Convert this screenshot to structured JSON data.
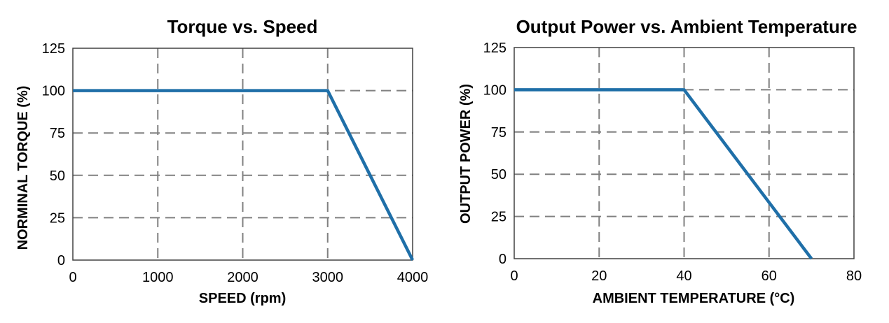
{
  "chart_data": [
    {
      "type": "line",
      "title": "Torque vs. Speed",
      "xlabel": "SPEED (rpm)",
      "ylabel": "NORMINAL TORQUE (%)",
      "xlim": [
        0,
        4000
      ],
      "ylim": [
        0,
        125
      ],
      "xticks": [
        "0",
        "1000",
        "2000",
        "3000",
        "4000"
      ],
      "yticks": [
        "0",
        "25",
        "50",
        "75",
        "100",
        "125"
      ],
      "grid": true,
      "line_color": "#1f6fa8",
      "series": [
        {
          "x": [
            0,
            3000,
            4000
          ],
          "y": [
            100,
            100,
            0
          ]
        }
      ]
    },
    {
      "type": "line",
      "title": "Output Power vs. Ambient Temperature",
      "xlabel": "AMBIENT TEMPERATURE (°C)",
      "ylabel": "OUTPUT POWER (%)",
      "xlim": [
        0,
        80
      ],
      "ylim": [
        0,
        125
      ],
      "xticks": [
        "0",
        "20",
        "40",
        "60",
        "80"
      ],
      "yticks": [
        "0",
        "25",
        "50",
        "75",
        "100",
        "125"
      ],
      "grid": true,
      "line_color": "#1f6fa8",
      "series": [
        {
          "x": [
            0,
            40,
            70
          ],
          "y": [
            100,
            100,
            0
          ]
        }
      ]
    }
  ]
}
